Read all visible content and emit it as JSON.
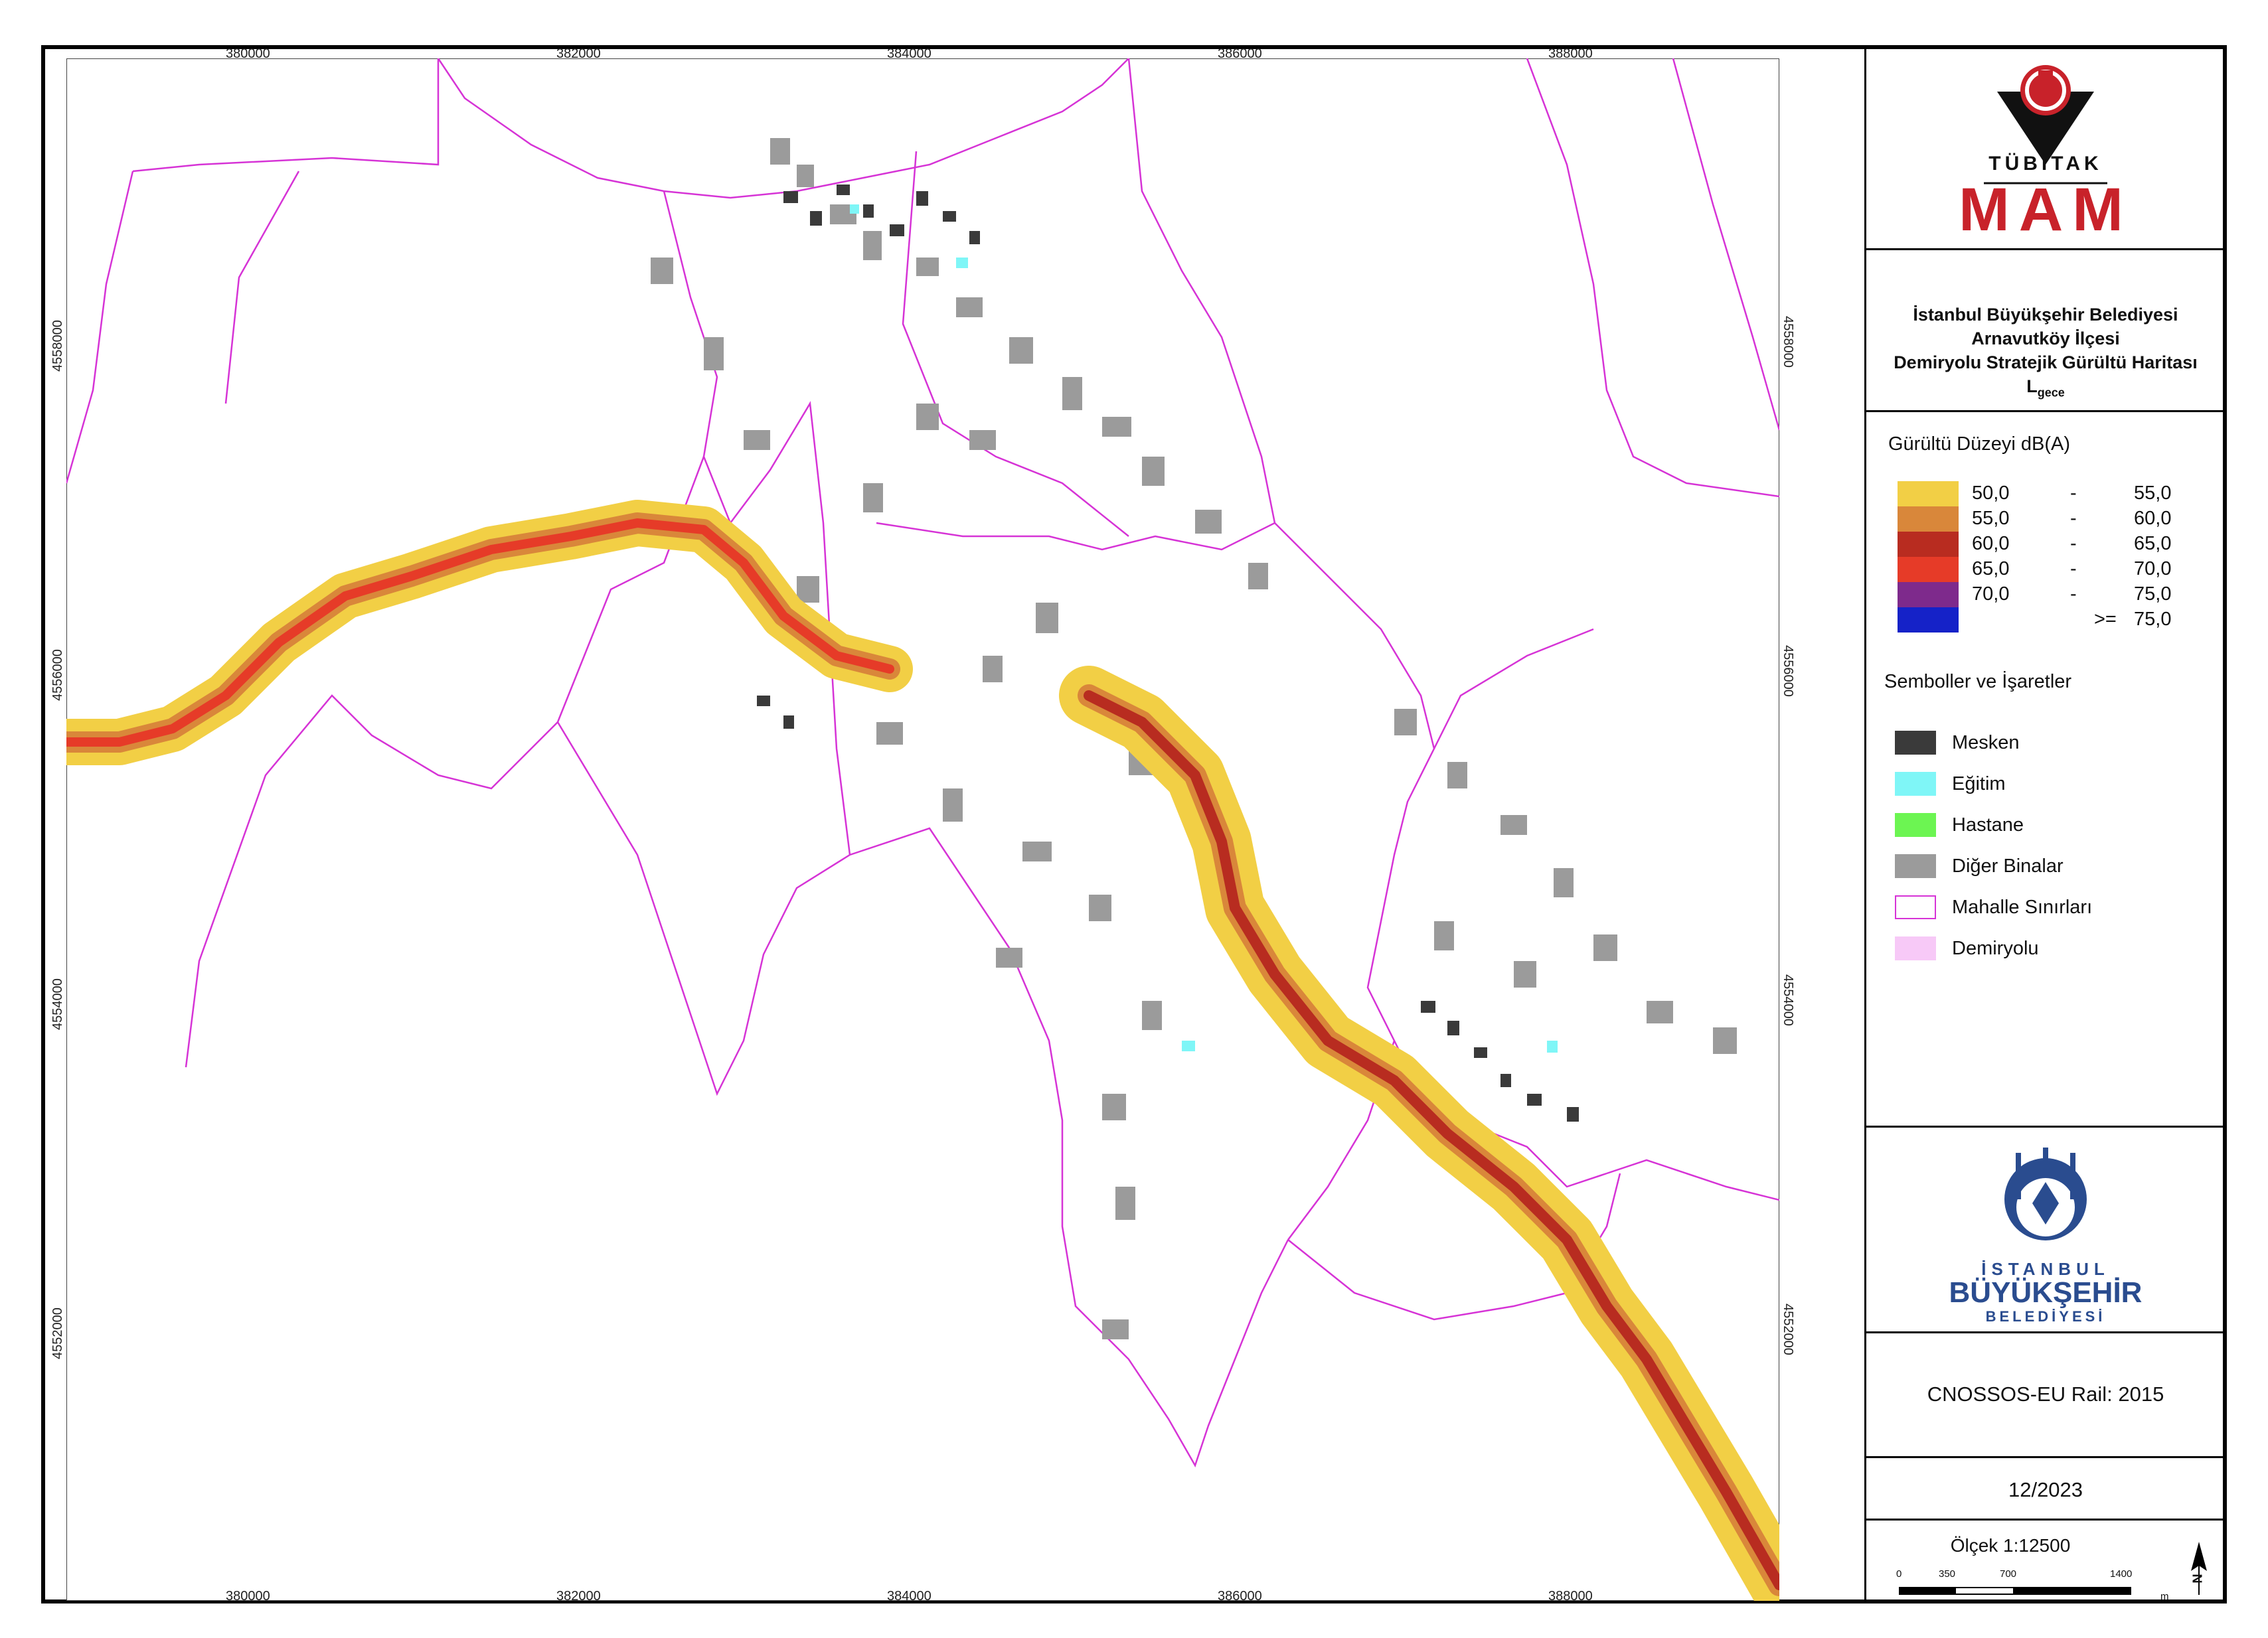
{
  "map": {
    "x_ticks": [
      "380000",
      "382000",
      "384000",
      "386000",
      "388000"
    ],
    "y_ticks": [
      "4558000",
      "4556000",
      "4554000",
      "4552000"
    ]
  },
  "logos": {
    "tubitak_text": "TÜBİTAK",
    "mam_text": "MAM",
    "ibb_line1": "İSTANBUL",
    "ibb_line2": "BÜYÜKŞEHİR",
    "ibb_line3": "BELEDİYESİ"
  },
  "title": {
    "line1": "İstanbul Büyükşehir Belediyesi",
    "line2": "Arnavutköy İlçesi",
    "line3": "Demiryolu Stratejik Gürültü Haritası",
    "line4_main": "L",
    "line4_sub": "gece"
  },
  "noise_legend": {
    "heading": "Gürültü Düzeyi dB(A)",
    "ranges": [
      {
        "lo": "50,0",
        "dash": "-",
        "hi": "55,0",
        "color": "#f2cf45"
      },
      {
        "lo": "55,0",
        "dash": "-",
        "hi": "60,0",
        "color": "#d9873a"
      },
      {
        "lo": "60,0",
        "dash": "-",
        "hi": "65,0",
        "color": "#b82c20"
      },
      {
        "lo": "65,0",
        "dash": "-",
        "hi": "70,0",
        "color": "#e63b28"
      },
      {
        "lo": "70,0",
        "dash": "-",
        "hi": "75,0",
        "color": "#7e2a8c"
      },
      {
        "lo": "",
        "dash": ">=",
        "hi": "75,0",
        "color": "#1522c8"
      }
    ]
  },
  "symbols_legend": {
    "heading": "Semboller ve İşaretler",
    "items": [
      {
        "label": "Mesken",
        "color": "#3a3a3a"
      },
      {
        "label": "Eğitim",
        "color": "#7ff6f7"
      },
      {
        "label": "Hastane",
        "color": "#6cf552"
      },
      {
        "label": "Diğer Binalar",
        "color": "#9b9b9b"
      },
      {
        "label": "Mahalle Sınırları",
        "color": "#d633d6"
      },
      {
        "label": "Demiryolu",
        "color": "#f7c9f7"
      }
    ]
  },
  "model": "CNOSSOS-EU Rail: 2015",
  "date": "12/2023",
  "scale": {
    "label": "Ölçek 1:12500",
    "ticks": [
      "0",
      "350",
      "700",
      "1400"
    ],
    "unit": "m"
  },
  "north": "N"
}
